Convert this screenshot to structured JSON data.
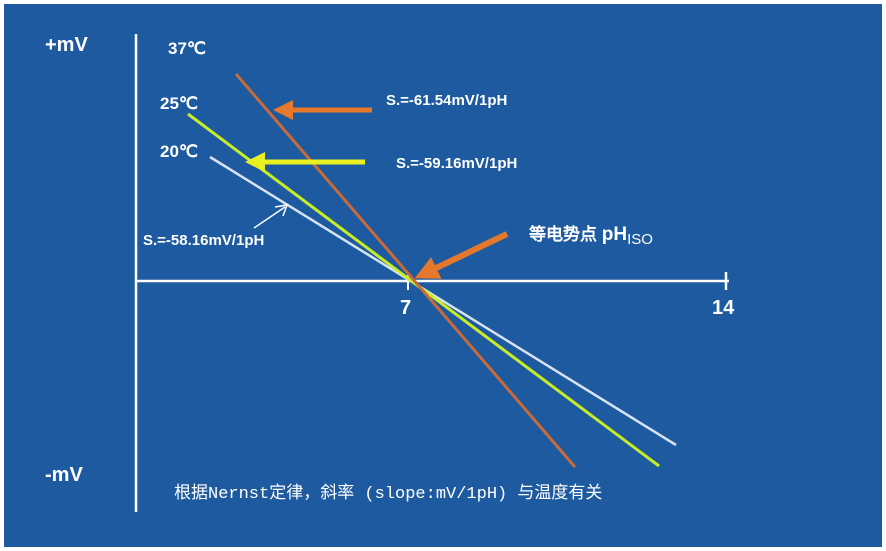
{
  "axes": {
    "y_top": "+mV",
    "y_bottom": "-mV",
    "x_ticks": [
      "7",
      "14"
    ]
  },
  "lines": [
    {
      "temp": "37℃",
      "slope": "S.=-61.54mV/1pH",
      "color": "#c96a3a"
    },
    {
      "temp": "25℃",
      "slope": "S.=-59.16mV/1pH",
      "color": "#c8ec28"
    },
    {
      "temp": "20℃",
      "slope": "S.=-58.16mV/1pH",
      "color": "#d7e3f2"
    }
  ],
  "isoelectric": {
    "label_cn": "等电势点",
    "label_ph": "pH",
    "label_sub": "ISO",
    "arrow_color": "#e5782a"
  },
  "caption": "根据Nernst定律，斜率 (slope:mV/1pH) 与温度有关",
  "colors": {
    "background": "#1d5aa0",
    "axis": "#ffffff",
    "arrow_37": "#e5782a",
    "arrow_25": "#e8f020"
  }
}
